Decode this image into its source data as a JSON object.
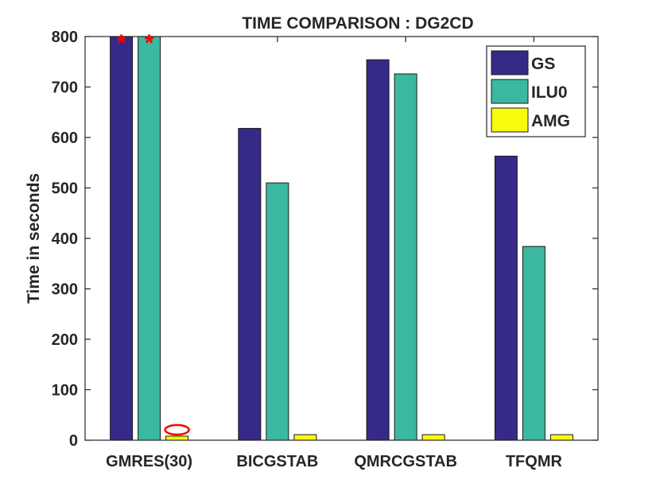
{
  "chart_data": {
    "type": "bar",
    "title": "TIME COMPARISON : DG2CD",
    "xlabel": "",
    "ylabel": "Time in seconds",
    "ylim": [
      0,
      800
    ],
    "yticks": [
      0,
      100,
      200,
      300,
      400,
      500,
      600,
      700,
      800
    ],
    "categories": [
      "GMRES(30)",
      "BICGSTAB",
      "QMRCGSTAB",
      "TFQMR"
    ],
    "series": [
      {
        "name": "GS",
        "color": "#352a87",
        "values": [
          800,
          618,
          754,
          563
        ]
      },
      {
        "name": "ILU0",
        "color": "#3bb8a0",
        "values": [
          800,
          510,
          726,
          384
        ]
      },
      {
        "name": "AMG",
        "color": "#f9fb0e",
        "values": [
          8,
          11,
          11,
          11
        ]
      }
    ],
    "legend_position": "top-right",
    "grid": false,
    "annotations": [
      {
        "type": "star",
        "color": "#ff0000",
        "series": "GS",
        "category": "GMRES(30)"
      },
      {
        "type": "star",
        "color": "#ff0000",
        "series": "ILU0",
        "category": "GMRES(30)"
      },
      {
        "type": "ellipse",
        "color": "#ff0000",
        "series": "AMG",
        "category": "GMRES(30)"
      }
    ]
  }
}
